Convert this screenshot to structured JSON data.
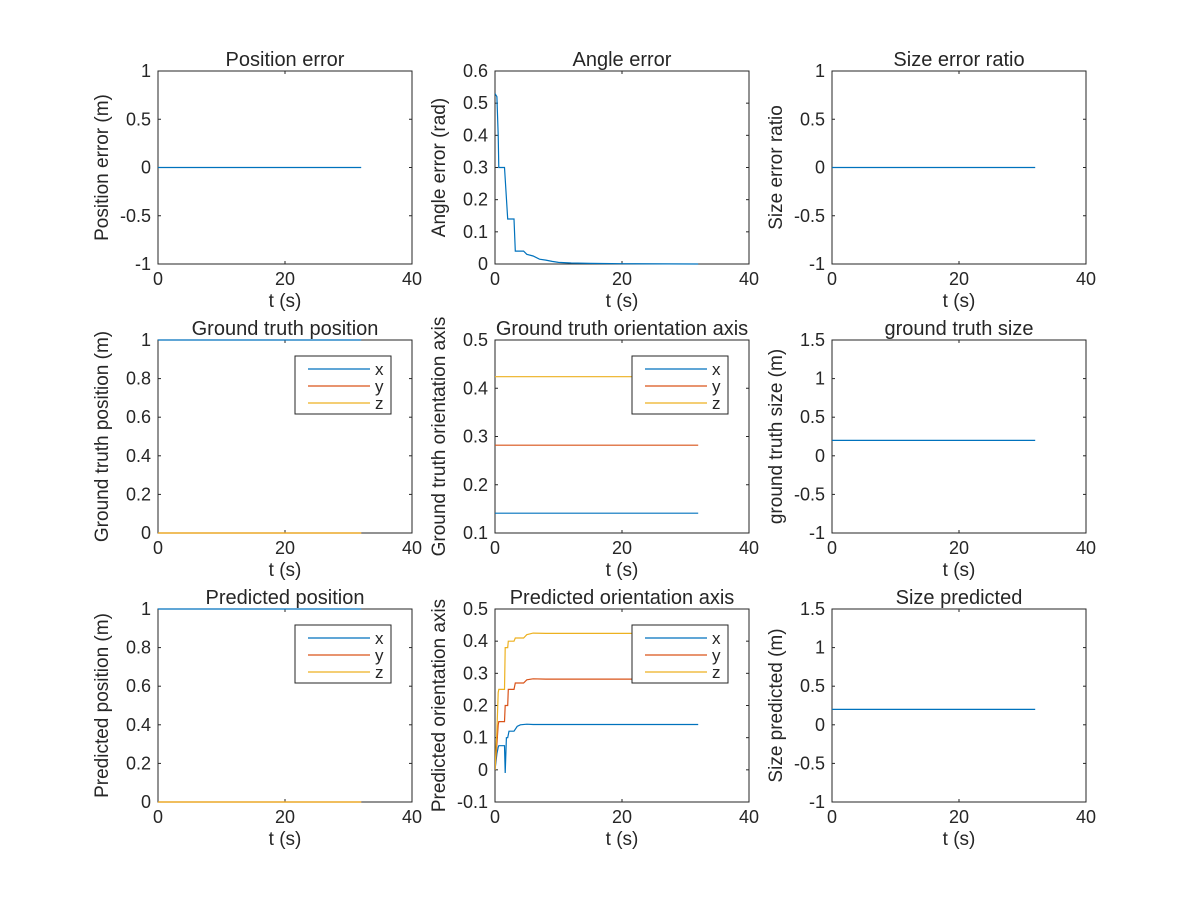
{
  "colors": {
    "blue": "#0072BD",
    "orange": "#D95319",
    "yellow": "#EDB120",
    "axes": "#262626"
  },
  "chart_data": [
    {
      "type": "line",
      "title": "Position error",
      "xlabel": "t (s)",
      "ylabel": "Position error (m)",
      "xlim": [
        0,
        40
      ],
      "ylim": [
        -1,
        1
      ],
      "xticks": [
        0,
        20,
        40
      ],
      "yticks": [
        -1,
        -0.5,
        0,
        0.5,
        1
      ],
      "yticklabels": [
        "-1",
        "-0.5",
        "0",
        "0.5",
        "1"
      ],
      "series": [
        {
          "x": [
            0,
            32
          ],
          "y": [
            0,
            0
          ],
          "color": "#0072BD"
        }
      ]
    },
    {
      "type": "line",
      "title": "Angle error",
      "xlabel": "t (s)",
      "ylabel": "Angle error (rad)",
      "xlim": [
        0,
        40
      ],
      "ylim": [
        0,
        0.6
      ],
      "xticks": [
        0,
        20,
        40
      ],
      "yticks": [
        0,
        0.1,
        0.2,
        0.3,
        0.4,
        0.5,
        0.6
      ],
      "yticklabels": [
        "0",
        "0.1",
        "0.2",
        "0.3",
        "0.4",
        "0.5",
        "0.6"
      ],
      "series": [
        {
          "x": [
            0,
            0.3,
            0.5,
            0.6,
            1.5,
            2.0,
            2.1,
            3.0,
            3.2,
            4.5,
            5.0,
            6.0,
            7.0,
            8.0,
            9.0,
            10.0,
            12.0,
            15.0,
            20.0,
            32.0
          ],
          "y": [
            0.53,
            0.52,
            0.4,
            0.3,
            0.3,
            0.14,
            0.14,
            0.14,
            0.04,
            0.04,
            0.03,
            0.025,
            0.015,
            0.012,
            0.008,
            0.005,
            0.003,
            0.002,
            0.001,
            0.0
          ],
          "color": "#0072BD"
        }
      ]
    },
    {
      "type": "line",
      "title": "Size error ratio",
      "xlabel": "t (s)",
      "ylabel": "Size error ratio",
      "xlim": [
        0,
        40
      ],
      "ylim": [
        -1,
        1
      ],
      "xticks": [
        0,
        20,
        40
      ],
      "yticks": [
        -1,
        -0.5,
        0,
        0.5,
        1
      ],
      "yticklabels": [
        "-1",
        "-0.5",
        "0",
        "0.5",
        "1"
      ],
      "series": [
        {
          "x": [
            0,
            32
          ],
          "y": [
            0,
            0
          ],
          "color": "#0072BD"
        }
      ]
    },
    {
      "type": "line",
      "title": "Ground truth position",
      "xlabel": "t (s)",
      "ylabel": "Ground truth position (m)",
      "xlim": [
        0,
        40
      ],
      "ylim": [
        0,
        1
      ],
      "xticks": [
        0,
        20,
        40
      ],
      "yticks": [
        0,
        0.2,
        0.4,
        0.6,
        0.8,
        1
      ],
      "yticklabels": [
        "0",
        "0.2",
        "0.4",
        "0.6",
        "0.8",
        "1"
      ],
      "legend": "top-right",
      "series": [
        {
          "name": "x",
          "x": [
            0,
            32
          ],
          "y": [
            1,
            1
          ],
          "color": "#0072BD"
        },
        {
          "name": "y",
          "x": [
            0,
            32
          ],
          "y": [
            0,
            0
          ],
          "color": "#D95319"
        },
        {
          "name": "z",
          "x": [
            0,
            32
          ],
          "y": [
            0,
            0
          ],
          "color": "#EDB120"
        }
      ]
    },
    {
      "type": "line",
      "title": "Ground truth orientation axis",
      "xlabel": "t (s)",
      "ylabel": "Ground truth orientation axis",
      "xlim": [
        0,
        40
      ],
      "ylim": [
        0.1,
        0.5
      ],
      "xticks": [
        0,
        20,
        40
      ],
      "yticks": [
        0.1,
        0.2,
        0.3,
        0.4,
        0.5
      ],
      "yticklabels": [
        "0.1",
        "0.2",
        "0.3",
        "0.4",
        "0.5"
      ],
      "legend": "top-right",
      "series": [
        {
          "name": "x",
          "x": [
            0,
            32
          ],
          "y": [
            0.141,
            0.141
          ],
          "color": "#0072BD"
        },
        {
          "name": "y",
          "x": [
            0,
            32
          ],
          "y": [
            0.282,
            0.282
          ],
          "color": "#D95319"
        },
        {
          "name": "z",
          "x": [
            0,
            32
          ],
          "y": [
            0.424,
            0.424
          ],
          "color": "#EDB120"
        }
      ]
    },
    {
      "type": "line",
      "title": "ground truth size",
      "xlabel": "t (s)",
      "ylabel": "ground truth size (m)",
      "xlim": [
        0,
        40
      ],
      "ylim": [
        -1,
        1.5
      ],
      "xticks": [
        0,
        20,
        40
      ],
      "yticks": [
        -1,
        -0.5,
        0,
        0.5,
        1,
        1.5
      ],
      "yticklabels": [
        "-1",
        "-0.5",
        "0",
        "0.5",
        "1",
        "1.5"
      ],
      "series": [
        {
          "x": [
            0,
            32
          ],
          "y": [
            0.2,
            0.2
          ],
          "color": "#0072BD"
        }
      ]
    },
    {
      "type": "line",
      "title": "Predicted position",
      "xlabel": "t (s)",
      "ylabel": "Predicted position (m)",
      "xlim": [
        0,
        40
      ],
      "ylim": [
        0,
        1
      ],
      "xticks": [
        0,
        20,
        40
      ],
      "yticks": [
        0,
        0.2,
        0.4,
        0.6,
        0.8,
        1
      ],
      "yticklabels": [
        "0",
        "0.2",
        "0.4",
        "0.6",
        "0.8",
        "1"
      ],
      "legend": "top-right",
      "series": [
        {
          "name": "x",
          "x": [
            0,
            32
          ],
          "y": [
            1,
            1
          ],
          "color": "#0072BD"
        },
        {
          "name": "y",
          "x": [
            0,
            32
          ],
          "y": [
            0,
            0
          ],
          "color": "#D95319"
        },
        {
          "name": "z",
          "x": [
            0,
            32
          ],
          "y": [
            0,
            0
          ],
          "color": "#EDB120"
        }
      ]
    },
    {
      "type": "line",
      "title": "Predicted orientation axis",
      "xlabel": "t (s)",
      "ylabel": "Predicted orientation axis",
      "xlim": [
        0,
        40
      ],
      "ylim": [
        -0.1,
        0.5
      ],
      "xticks": [
        0,
        20,
        40
      ],
      "yticks": [
        -0.1,
        0,
        0.1,
        0.2,
        0.3,
        0.4,
        0.5
      ],
      "yticklabels": [
        "-0.1",
        "0",
        "0.1",
        "0.2",
        "0.3",
        "0.4",
        "0.5"
      ],
      "legend": "top-right",
      "series": [
        {
          "name": "x",
          "x": [
            0,
            0.3,
            0.5,
            0.6,
            1.5,
            1.6,
            1.8,
            2.0,
            2.2,
            3.0,
            3.5,
            4.0,
            5.0,
            6.0,
            8.0,
            32.0
          ],
          "y": [
            0.0,
            0.05,
            0.07,
            0.075,
            0.075,
            -0.01,
            0.1,
            0.1,
            0.12,
            0.12,
            0.135,
            0.14,
            0.142,
            0.141,
            0.141,
            0.141
          ],
          "color": "#0072BD"
        },
        {
          "name": "y",
          "x": [
            0,
            0.3,
            0.5,
            0.6,
            1.5,
            1.6,
            2.0,
            2.1,
            3.0,
            3.2,
            4.5,
            5.0,
            6.0,
            8.0,
            32.0
          ],
          "y": [
            0.0,
            0.08,
            0.14,
            0.15,
            0.15,
            0.2,
            0.2,
            0.25,
            0.25,
            0.27,
            0.27,
            0.28,
            0.283,
            0.282,
            0.282
          ],
          "color": "#D95319"
        },
        {
          "name": "z",
          "x": [
            0,
            0.3,
            0.5,
            0.6,
            1.5,
            1.6,
            2.0,
            2.1,
            3.0,
            3.2,
            4.5,
            5.0,
            6.0,
            8.0,
            32.0
          ],
          "y": [
            0.0,
            0.12,
            0.24,
            0.25,
            0.25,
            0.38,
            0.38,
            0.4,
            0.4,
            0.41,
            0.41,
            0.42,
            0.425,
            0.424,
            0.424
          ],
          "color": "#EDB120"
        }
      ]
    },
    {
      "type": "line",
      "title": "Size predicted",
      "xlabel": "t (s)",
      "ylabel": "Size predicted (m)",
      "xlim": [
        0,
        40
      ],
      "ylim": [
        -1,
        1.5
      ],
      "xticks": [
        0,
        20,
        40
      ],
      "yticks": [
        -1,
        -0.5,
        0,
        0.5,
        1,
        1.5
      ],
      "yticklabels": [
        "-1",
        "-0.5",
        "0",
        "0.5",
        "1",
        "1.5"
      ],
      "series": [
        {
          "x": [
            0,
            32
          ],
          "y": [
            0.2,
            0.2
          ],
          "color": "#0072BD"
        }
      ]
    }
  ]
}
